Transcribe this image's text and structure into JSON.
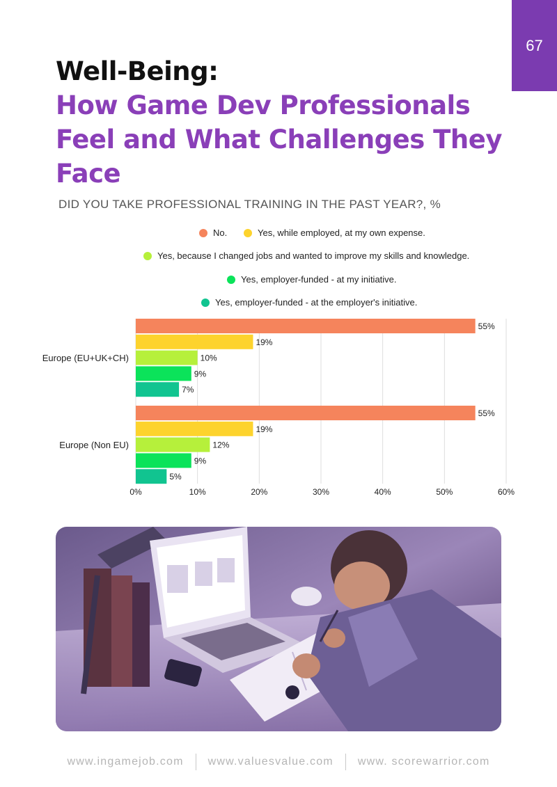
{
  "page_number": "67",
  "title": {
    "line1": "Well-Being:",
    "line2": "How Game Dev Professionals Feel and What Challenges They Face"
  },
  "question": "DID YOU TAKE PROFESSIONAL TRAINING IN THE PAST YEAR?, %",
  "colors": {
    "accent": "#7b3bb0",
    "series": [
      "#f5845c",
      "#fdd32d",
      "#b6f03b",
      "#0be35a",
      "#11c490"
    ]
  },
  "chart_data": {
    "type": "bar",
    "orientation": "horizontal",
    "title": "DID YOU TAKE PROFESSIONAL TRAINING IN THE PAST YEAR?, %",
    "categories": [
      "Europe (EU+UK+CH)",
      "Europe (Non EU)"
    ],
    "series": [
      {
        "name": "No.",
        "values": [
          55,
          55
        ]
      },
      {
        "name": "Yes, while employed, at my own expense.",
        "values": [
          19,
          19
        ]
      },
      {
        "name": "Yes, because I changed jobs and wanted to improve my skills and knowledge.",
        "values": [
          10,
          12
        ]
      },
      {
        "name": "Yes, employer-funded - at my initiative.",
        "values": [
          9,
          9
        ]
      },
      {
        "name": "Yes, employer-funded - at the employer's initiative.",
        "values": [
          7,
          5
        ]
      }
    ],
    "xlim": [
      0,
      60
    ],
    "x_ticks": [
      "0%",
      "10%",
      "20%",
      "30%",
      "40%",
      "50%",
      "60%"
    ],
    "value_suffix": "%",
    "grid": true,
    "legend_position": "top"
  },
  "footer": {
    "links": [
      "www.ingamejob.com",
      "www.valuesvalue.com",
      "www. scorewarrior.com"
    ]
  }
}
